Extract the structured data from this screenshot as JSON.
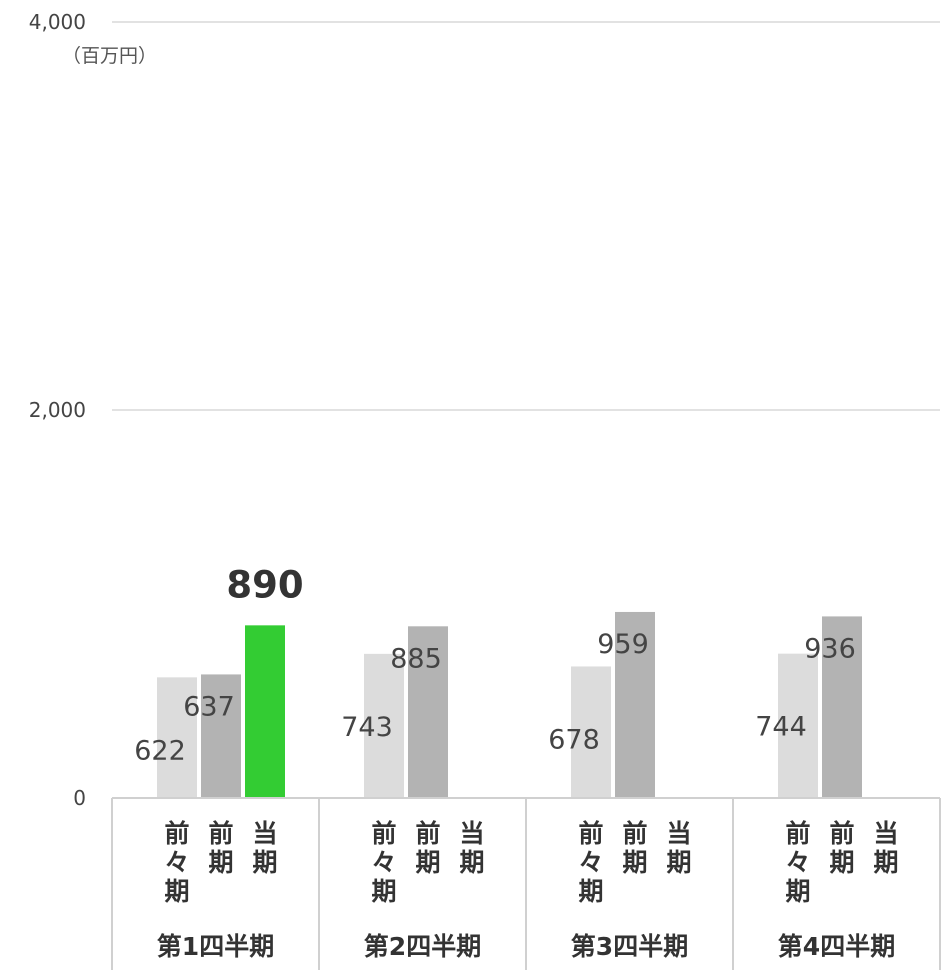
{
  "chart_data": {
    "type": "bar",
    "unit_label": "（百万円）",
    "y_ticks": [
      "0",
      "2,000",
      "4,000"
    ],
    "ylim": [
      0,
      4000
    ],
    "grid": true,
    "categories": [
      "第1四半期",
      "第2四半期",
      "第3四半期",
      "第4四半期"
    ],
    "sub_labels": [
      "前々期",
      "前期",
      "当期"
    ],
    "series": [
      {
        "name": "前々期",
        "color": "#dcdcdc",
        "values": [
          622,
          743,
          678,
          744
        ],
        "labels": [
          "622",
          "743",
          "678",
          "744"
        ]
      },
      {
        "name": "前期",
        "color": "#b3b3b3",
        "values": [
          637,
          885,
          959,
          936
        ],
        "labels": [
          "637",
          "885",
          "959",
          "936"
        ]
      },
      {
        "name": "当期",
        "color": "#33cc33",
        "values": [
          890,
          null,
          null,
          null
        ],
        "labels": [
          "890",
          "",
          "",
          ""
        ]
      }
    ],
    "highlight_series": "当期"
  }
}
